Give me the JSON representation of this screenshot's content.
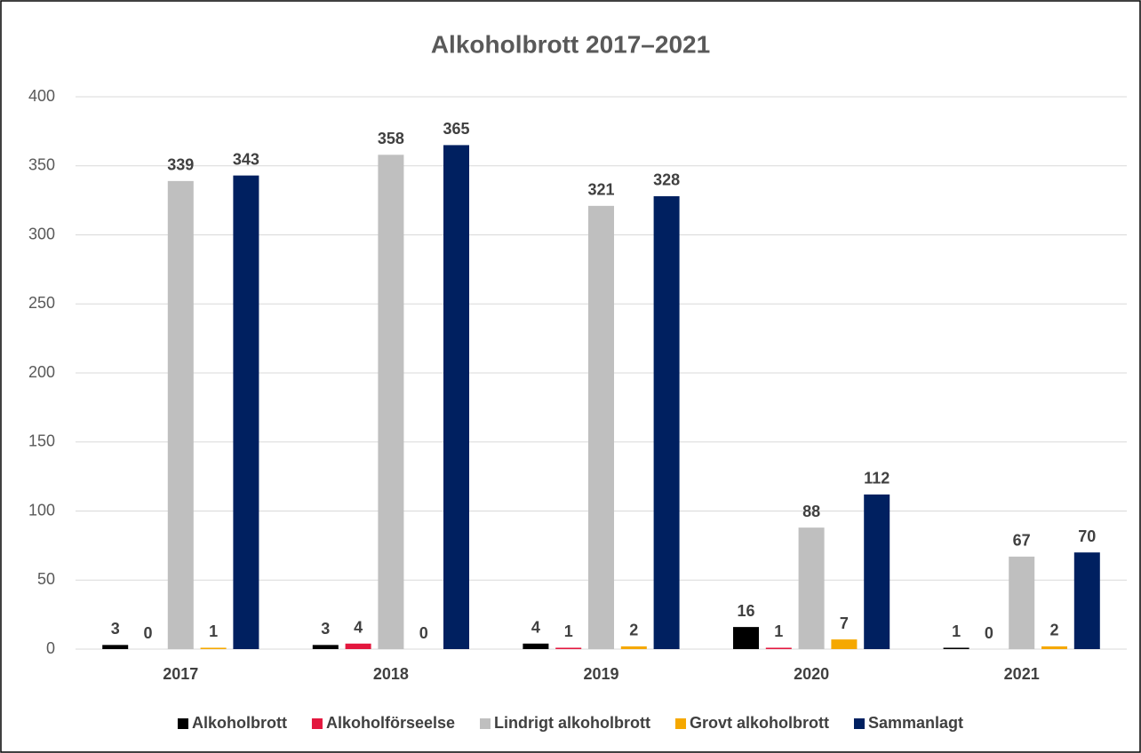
{
  "chart_data": {
    "type": "bar",
    "title": "Alkoholbrott 2017–2021",
    "categories": [
      "2017",
      "2018",
      "2019",
      "2020",
      "2021"
    ],
    "series": [
      {
        "name": "Alkoholbrott",
        "color": "#000000",
        "values": [
          3,
          3,
          4,
          16,
          1
        ]
      },
      {
        "name": "Alkoholförseelse",
        "color": "#e3173e",
        "values": [
          0,
          4,
          1,
          1,
          0
        ]
      },
      {
        "name": "Lindrigt alkoholbrott",
        "color": "#bfbfbf",
        "values": [
          339,
          358,
          321,
          88,
          67
        ]
      },
      {
        "name": "Grovt alkoholbrott",
        "color": "#f5a800",
        "values": [
          1,
          0,
          2,
          7,
          2
        ]
      },
      {
        "name": "Sammanlagt",
        "color": "#002060",
        "values": [
          343,
          365,
          328,
          112,
          70
        ]
      }
    ],
    "ylim": [
      0,
      400
    ],
    "yticks": [
      0,
      50,
      100,
      150,
      200,
      250,
      300,
      350,
      400
    ],
    "grid": true,
    "legend": "bottom"
  }
}
